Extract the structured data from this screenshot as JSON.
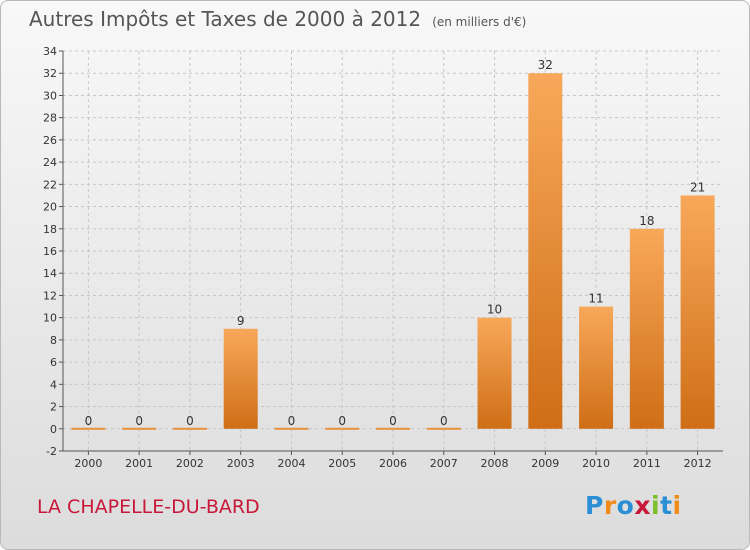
{
  "title": {
    "main": "Autres Impôts et Taxes de 2000 à 2012",
    "unit": "(en milliers d'€)"
  },
  "commune": "LA CHAPELLE-DU-BARD",
  "logo": {
    "text": "Proxiti",
    "letters": [
      {
        "char": "P",
        "color": "#2a8fd4"
      },
      {
        "char": "r",
        "color": "#f08c1a"
      },
      {
        "char": "o",
        "color": "#2a8fd4"
      },
      {
        "char": "x",
        "color": "#c8183a"
      },
      {
        "char": "i",
        "color": "#7bbf2a"
      },
      {
        "char": "t",
        "color": "#2a8fd4"
      },
      {
        "char": "i",
        "color": "#f08c1a"
      }
    ]
  },
  "chart_data": {
    "type": "bar",
    "categories": [
      "2000",
      "2001",
      "2002",
      "2003",
      "2004",
      "2005",
      "2006",
      "2007",
      "2008",
      "2009",
      "2010",
      "2011",
      "2012"
    ],
    "values": [
      0,
      0,
      0,
      9,
      0,
      0,
      0,
      0,
      10,
      32,
      11,
      18,
      21
    ],
    "title": "Autres Impôts et Taxes de 2000 à 2012",
    "ylim": [
      -2,
      34
    ],
    "yticks": [
      -2,
      0,
      2,
      4,
      6,
      8,
      10,
      12,
      14,
      16,
      18,
      20,
      22,
      24,
      26,
      28,
      30,
      32,
      34
    ],
    "grid": true,
    "bar_color_light": "#f8a85a",
    "bar_color_dark": "#cf6e16"
  }
}
